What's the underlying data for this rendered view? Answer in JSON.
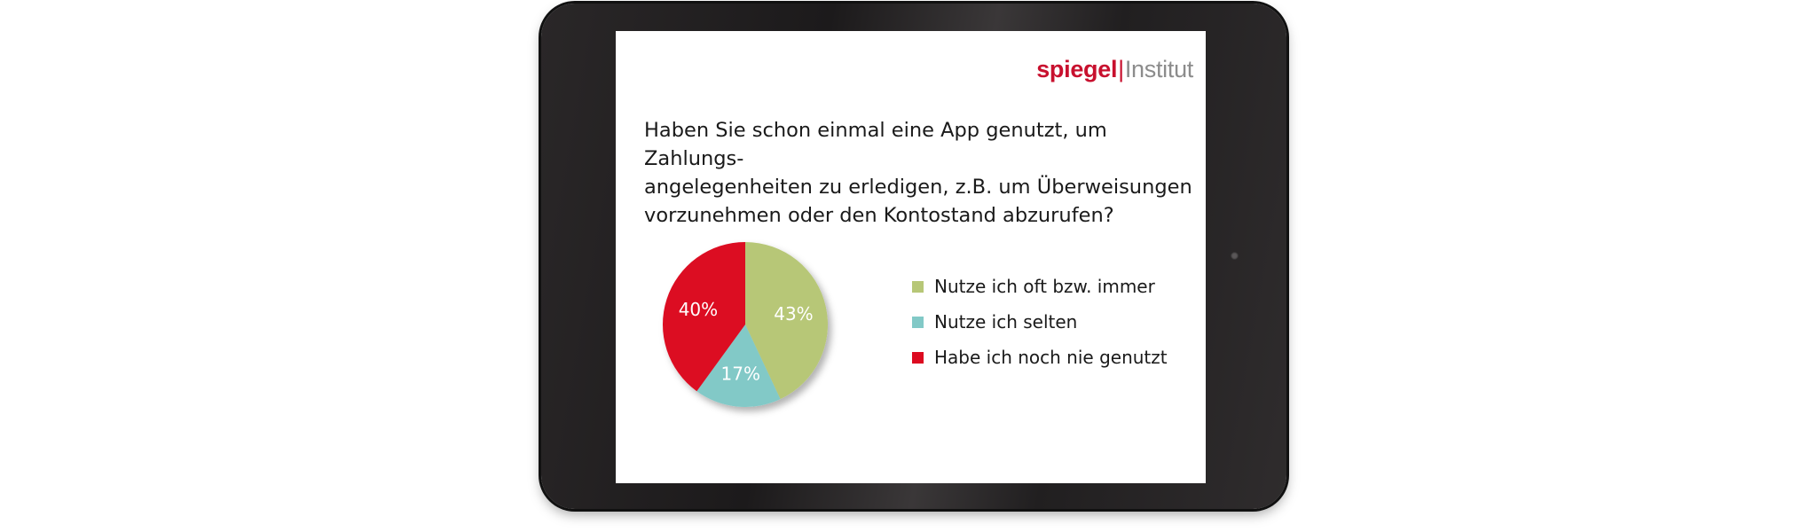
{
  "brand": {
    "part1": "spiegel",
    "separator": "|",
    "part2": "Institut"
  },
  "colors": {
    "green": "#b7c777",
    "teal": "#82c9c7",
    "red": "#dc0a20",
    "brand_red": "#c8102e"
  },
  "chart_data": {
    "type": "pie",
    "title": "Haben Sie schon einmal eine App genutzt, um Zahlungs-\nangelegenheiten zu erledigen, z.B. um Überweisungen\nvorzunehmen oder den Kontostand abzurufen?",
    "slices": [
      {
        "label": "Nutze ich oft bzw. immer",
        "value": 43,
        "display": "43%",
        "color": "#b7c777"
      },
      {
        "label": "Nutze ich selten",
        "value": 17,
        "display": "17%",
        "color": "#82c9c7"
      },
      {
        "label": "Habe ich noch nie genutzt",
        "value": 40,
        "display": "40%",
        "color": "#dc0a20"
      }
    ],
    "legend_position": "right"
  }
}
